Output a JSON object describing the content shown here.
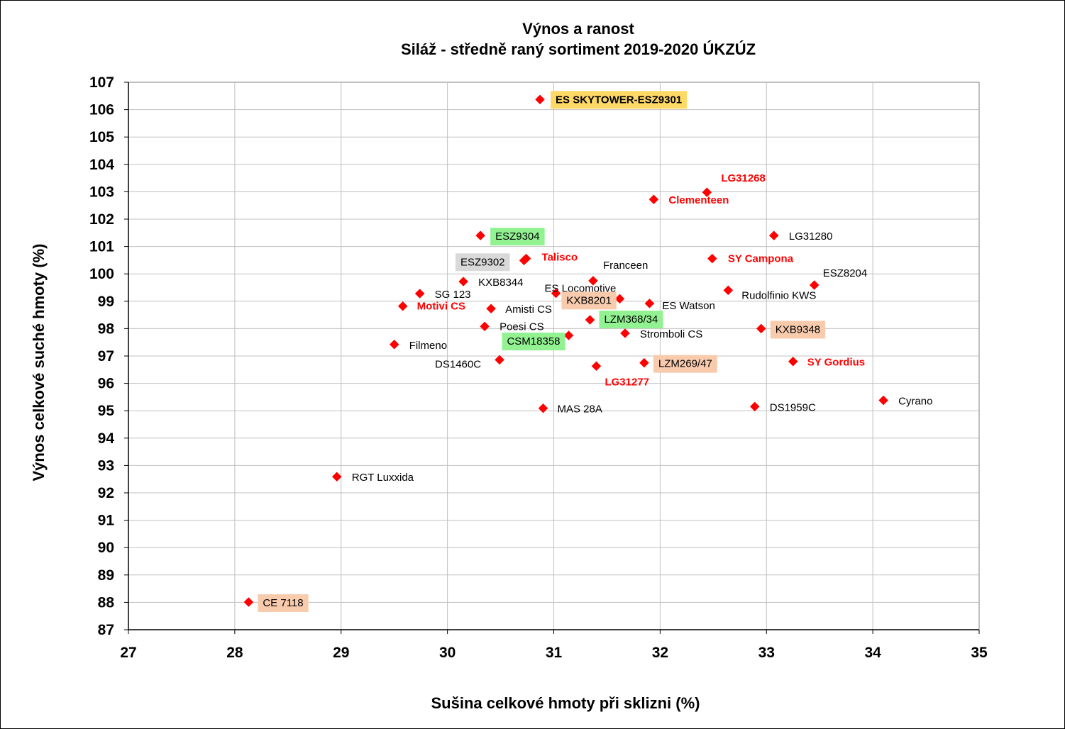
{
  "chart_data": {
    "type": "scatter",
    "title": "Výnos a ranost",
    "subtitle": "Siláž - středně raný sortiment 2019-2020 ÚKZÚZ",
    "xlabel": "Sušina celkové hmoty při sklizni (%)",
    "ylabel": "Výnos celkové suché hmoty (%)",
    "xlim": [
      27,
      35
    ],
    "ylim": [
      87,
      107
    ],
    "x_ticks": [
      "27",
      "28",
      "29",
      "30",
      "31",
      "32",
      "33",
      "34",
      "35"
    ],
    "y_ticks": [
      "87",
      "88",
      "89",
      "90",
      "91",
      "92",
      "93",
      "94",
      "95",
      "96",
      "97",
      "98",
      "99",
      "100",
      "101",
      "102",
      "103",
      "104",
      "105",
      "106",
      "107"
    ],
    "grid": true,
    "marker": "diamond",
    "marker_color": "#ff0000",
    "points": [
      {
        "label": "ES SKYTOWER-ESZ9301",
        "x": 30.87,
        "y": 106.37,
        "style": "bold",
        "color": "#000000",
        "bg": "#ffd966"
      },
      {
        "label": "LG31268",
        "x": 32.44,
        "y": 102.98,
        "style": "bold",
        "color": "#ff0000",
        "bg": ""
      },
      {
        "label": "Clementeen",
        "x": 31.94,
        "y": 102.72,
        "style": "bold",
        "color": "#ff0000",
        "bg": ""
      },
      {
        "label": "ESZ9304",
        "x": 30.31,
        "y": 101.4,
        "style": "normal",
        "color": "#000000",
        "bg": "#92f292"
      },
      {
        "label": "LG31280",
        "x": 33.07,
        "y": 101.4,
        "style": "normal",
        "color": "#000000",
        "bg": ""
      },
      {
        "label": "ESZ9302",
        "x": 30.72,
        "y": 100.49,
        "style": "normal",
        "color": "#000000",
        "bg": "#d9d9d9"
      },
      {
        "label": "Talisco",
        "x": 30.74,
        "y": 100.56,
        "style": "bold",
        "color": "#ff0000",
        "bg": ""
      },
      {
        "label": "SY Campona",
        "x": 32.49,
        "y": 100.56,
        "style": "bold",
        "color": "#ff0000",
        "bg": ""
      },
      {
        "label": "Franceen",
        "x": 31.37,
        "y": 99.75,
        "style": "normal",
        "color": "#000000",
        "bg": ""
      },
      {
        "label": "ESZ8204",
        "x": 33.45,
        "y": 99.59,
        "style": "normal",
        "color": "#000000",
        "bg": ""
      },
      {
        "label": "KXB8344",
        "x": 30.15,
        "y": 99.72,
        "style": "normal",
        "color": "#000000",
        "bg": ""
      },
      {
        "label": "ES Locomotive",
        "x": 31.02,
        "y": 99.29,
        "style": "normal",
        "color": "#000000",
        "bg": ""
      },
      {
        "label": "Rudolfinio KWS",
        "x": 32.64,
        "y": 99.4,
        "style": "normal",
        "color": "#000000",
        "bg": ""
      },
      {
        "label": "SG 123",
        "x": 29.74,
        "y": 99.28,
        "style": "normal",
        "color": "#000000",
        "bg": ""
      },
      {
        "label": "KXB8201",
        "x": 31.62,
        "y": 99.09,
        "style": "normal",
        "color": "#000000",
        "bg": "#f8cbad"
      },
      {
        "label": "ES Watson",
        "x": 31.9,
        "y": 98.92,
        "style": "normal",
        "color": "#000000",
        "bg": ""
      },
      {
        "label": "Motivi CS",
        "x": 29.58,
        "y": 98.82,
        "style": "bold",
        "color": "#ff0000",
        "bg": ""
      },
      {
        "label": "Amisti CS",
        "x": 30.41,
        "y": 98.73,
        "style": "normal",
        "color": "#000000",
        "bg": ""
      },
      {
        "label": "LZM368/34",
        "x": 31.34,
        "y": 98.32,
        "style": "normal",
        "color": "#000000",
        "bg": "#92f292"
      },
      {
        "label": "Poesi CS",
        "x": 30.35,
        "y": 98.08,
        "style": "normal",
        "color": "#000000",
        "bg": ""
      },
      {
        "label": "KXB9348",
        "x": 32.95,
        "y": 98.0,
        "style": "normal",
        "color": "#000000",
        "bg": "#f8cbad"
      },
      {
        "label": "Stromboli CS",
        "x": 31.67,
        "y": 97.83,
        "style": "normal",
        "color": "#000000",
        "bg": ""
      },
      {
        "label": "CSM18358",
        "x": 31.14,
        "y": 97.75,
        "style": "normal",
        "color": "#000000",
        "bg": "#92f292"
      },
      {
        "label": "Filmeno",
        "x": 29.5,
        "y": 97.42,
        "style": "normal",
        "color": "#000000",
        "bg": ""
      },
      {
        "label": "DS1460C",
        "x": 30.49,
        "y": 96.86,
        "style": "normal",
        "color": "#000000",
        "bg": ""
      },
      {
        "label": "SY Gordius",
        "x": 33.25,
        "y": 96.8,
        "style": "bold",
        "color": "#ff0000",
        "bg": ""
      },
      {
        "label": "LZM269/47",
        "x": 31.85,
        "y": 96.75,
        "style": "normal",
        "color": "#000000",
        "bg": "#f8cbad"
      },
      {
        "label": "LG31277",
        "x": 31.4,
        "y": 96.63,
        "style": "bold",
        "color": "#ff0000",
        "bg": ""
      },
      {
        "label": "Cyrano",
        "x": 34.1,
        "y": 95.38,
        "style": "normal",
        "color": "#000000",
        "bg": ""
      },
      {
        "label": "DS1959C",
        "x": 32.89,
        "y": 95.15,
        "style": "normal",
        "color": "#000000",
        "bg": ""
      },
      {
        "label": "MAS 28A",
        "x": 30.9,
        "y": 95.09,
        "style": "normal",
        "color": "#000000",
        "bg": ""
      },
      {
        "label": "RGT Luxxida",
        "x": 28.96,
        "y": 92.59,
        "style": "normal",
        "color": "#000000",
        "bg": ""
      },
      {
        "label": "CE 7118",
        "x": 28.13,
        "y": 88.01,
        "style": "normal",
        "color": "#000000",
        "bg": "#f8cbad"
      }
    ]
  }
}
